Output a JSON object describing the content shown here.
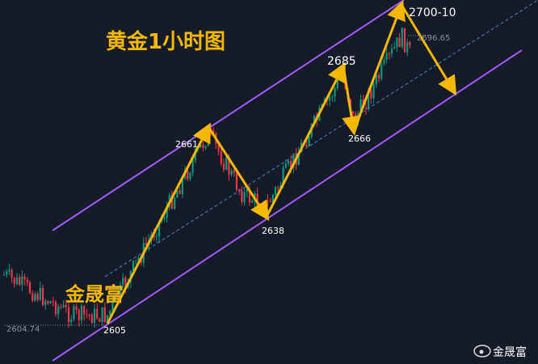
{
  "title": "黄金1小时图",
  "watermark": "金晟富",
  "footer_brand": "金晟富",
  "price_labels": [
    "2604.74",
    "2696.65"
  ],
  "wave_labels": [
    "2605",
    "2661",
    "2638",
    "2685",
    "2666",
    "2700-10"
  ]
}
